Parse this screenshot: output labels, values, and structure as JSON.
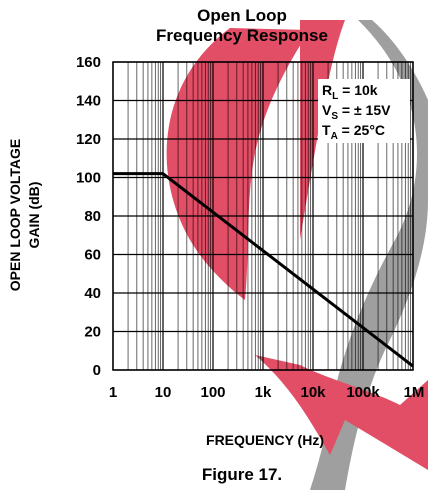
{
  "chart_data": {
    "type": "line",
    "title_line1": "Open Loop",
    "title_line2": "Frequency Response",
    "xlabel": "FREQUENCY (Hz)",
    "ylabel_line1": "OPEN LOOP VOLTAGE",
    "ylabel_line2": "GAIN (dB)",
    "x_scale": "log",
    "xlim": [
      1,
      1000000
    ],
    "ylim": [
      0,
      160
    ],
    "grid": true,
    "x_ticks": [
      {
        "value": 1,
        "label": "1"
      },
      {
        "value": 10,
        "label": "10"
      },
      {
        "value": 100,
        "label": "100"
      },
      {
        "value": 1000,
        "label": "1k"
      },
      {
        "value": 10000,
        "label": "10k"
      },
      {
        "value": 100000,
        "label": "100k"
      },
      {
        "value": 1000000,
        "label": "1M"
      }
    ],
    "y_ticks": [
      {
        "value": 0,
        "label": "0"
      },
      {
        "value": 20,
        "label": "20"
      },
      {
        "value": 40,
        "label": "40"
      },
      {
        "value": 60,
        "label": "60"
      },
      {
        "value": 80,
        "label": "80"
      },
      {
        "value": 100,
        "label": "100"
      },
      {
        "value": 120,
        "label": "120"
      },
      {
        "value": 140,
        "label": "140"
      },
      {
        "value": 160,
        "label": "160"
      }
    ],
    "series": [
      {
        "points": [
          {
            "x": 1,
            "y": 102
          },
          {
            "x": 10,
            "y": 102
          },
          {
            "x": 1000000,
            "y": 2
          }
        ],
        "color": "#000000"
      }
    ],
    "conditions": [
      {
        "main": "R",
        "sub": "L",
        "rest": " = 10k"
      },
      {
        "main": "V",
        "sub": "S",
        "rest": " = ± 15V"
      },
      {
        "main": "T",
        "sub": "A",
        "rest": " = 25°C"
      }
    ]
  },
  "caption": "Figure 17.",
  "colors": {
    "grid": "#000000",
    "curve": "#000000",
    "watermark_red": "#e0455e",
    "watermark_gray": "#9a9a9a"
  }
}
